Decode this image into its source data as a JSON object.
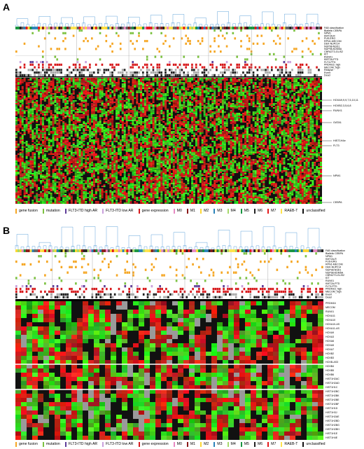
{
  "panels": [
    {
      "letter": "A",
      "annotation_tracks": [
        "FAB classification",
        "Biallelic CEBPA",
        "NPM1",
        "KMT2A-R",
        "FUS-ERG",
        "RPN1-MECOM",
        "DEK-NUP214",
        "NUP98-NSD1",
        "NUP98-KDM5A",
        "CBFA2T3-GLIS2",
        "KIT",
        "RUNX1",
        "KMT2A-PTD",
        "FLT3-PTD",
        "PRDM16_high",
        "MECOM_high",
        "Relapse",
        "Event",
        "Dead"
      ],
      "gene_labels": [
        "HOXA9,9,9,7,5,10,11",
        "HOXB2,3,5,6,8",
        "RUNX1",
        "GATA1",
        "HIST1H4e",
        "FLT3",
        "NPM1",
        "CEBPA"
      ]
    },
    {
      "letter": "B",
      "annotation_tracks": [
        "FAB classification",
        "Biallelic CEBPA",
        "NPM1",
        "KMT2A-R",
        "FUS-ERG",
        "RPN1-MECOM",
        "DEK-NUP214",
        "NUP98-NSD1",
        "NUP98-KDM5A",
        "CBFA2T3-GLIS2",
        "KIT",
        "RUNX1",
        "KMT2A-PTD",
        "FLT3-PTD",
        "PRDM16_high",
        "MECOM_high",
        "Event",
        "Dead"
      ],
      "gene_labels": [
        "PRDM16",
        "MECOM",
        "RUNX1",
        "HOXA11",
        "HOXA10",
        "HOXA10-AS",
        "HOXA11-AS",
        "HOXA9",
        "HOXA3",
        "HOXA6",
        "HOXA5",
        "HOXA7",
        "HOXB2",
        "HOXB3",
        "HOXB-AS3",
        "HOXB4",
        "HOXB5",
        "HOXB6",
        "HIST1H2AC",
        "HIST1H2AD",
        "HIST1H1C",
        "HIST1H2BC",
        "HIST1H2BK",
        "HIST1H2BE",
        "HIST1H2BF",
        "HIST1H1D",
        "HIST1H3J",
        "HIST1H2AE",
        "HIST1H2BD",
        "HIST1H2BG",
        "HIST1H2BH",
        "HIST1H1E",
        "HIST1H4E"
      ]
    }
  ],
  "legend": [
    {
      "label": "gene fusion",
      "color": "#f5a623"
    },
    {
      "label": "mutation",
      "color": "#7dc242"
    },
    {
      "label": "FLT3-ITD high AR",
      "color": "#5e3c99"
    },
    {
      "label": "FLT3-ITD low AR",
      "color": "#c9a0dc"
    },
    {
      "label": "gene expression",
      "color": "#d7191c"
    },
    {
      "label": "M0",
      "color": "#e78ac3"
    },
    {
      "label": "M1",
      "color": "#8b1a1a"
    },
    {
      "label": "M2",
      "color": "#fdd835"
    },
    {
      "label": "M3",
      "color": "#2b83ba"
    },
    {
      "label": "M4",
      "color": "#a6d96a"
    },
    {
      "label": "M5",
      "color": "#1a9641"
    },
    {
      "label": "M6",
      "color": "#222222"
    },
    {
      "label": "M7",
      "color": "#e41a1c"
    },
    {
      "label": "RAEB-T",
      "color": "#ffe34d"
    },
    {
      "label": "unclassified",
      "color": "#111111"
    }
  ]
}
